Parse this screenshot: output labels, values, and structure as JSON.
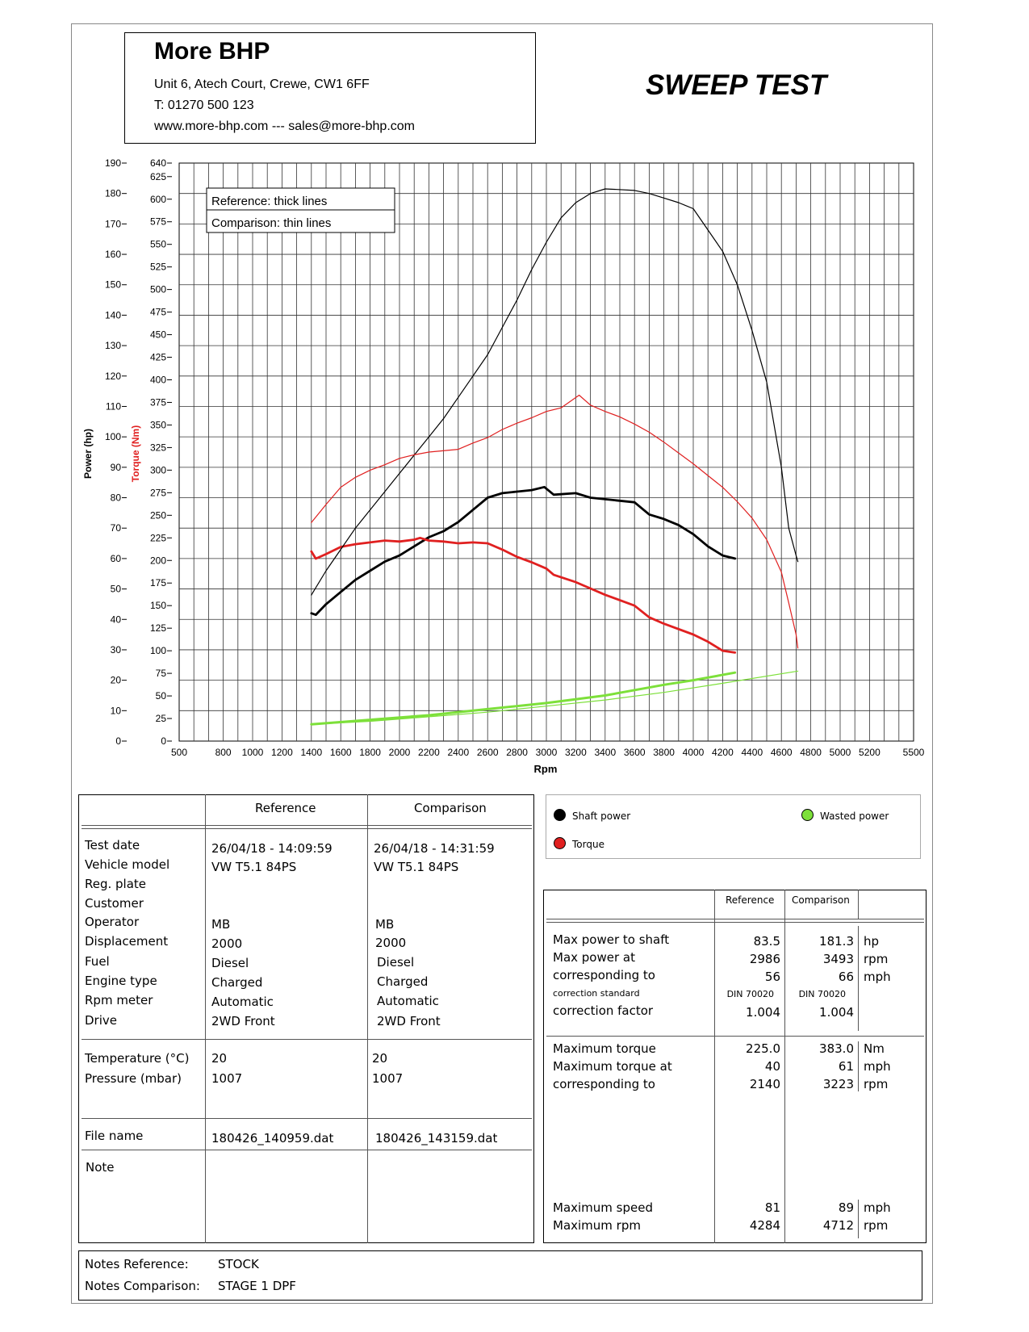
{
  "header": {
    "company": "More BHP",
    "address": "Unit 6, Atech Court, Crewe, CW1 6FF",
    "phone": "T: 01270 500 123",
    "web": "www.more-bhp.com --- sales@more-bhp.com",
    "test_title": "SWEEP TEST"
  },
  "colors": {
    "shaft_power": "#000000",
    "torque": "#e02020",
    "wasted_power": "#7de03a",
    "grid": "#333333"
  },
  "chart_data": {
    "type": "line",
    "x": [
      1400,
      1600,
      1800,
      2000,
      2200,
      2400,
      2600,
      2800,
      3000,
      3200,
      3400,
      3600,
      3800,
      4000,
      4200,
      4284,
      4400,
      4600,
      4700,
      4712
    ],
    "xlabel": "Rpm",
    "xlim": [
      500,
      5500
    ],
    "xticks": [
      "500",
      "800",
      "1000",
      "1200",
      "1400",
      "1600",
      "1800",
      "2000",
      "2200",
      "2400",
      "2600",
      "2800",
      "3000",
      "3200",
      "3400",
      "3600",
      "3800",
      "4000",
      "4200",
      "4400",
      "4600",
      "4800",
      "5000",
      "5200",
      "5500"
    ],
    "xtick_values": [
      500,
      800,
      1000,
      1200,
      1400,
      1600,
      1800,
      2000,
      2200,
      2400,
      2600,
      2800,
      3000,
      3200,
      3400,
      3600,
      3800,
      4000,
      4200,
      4400,
      4600,
      4800,
      5000,
      5200,
      5500
    ],
    "ylabel_left": "Power (hp)",
    "ylim_left": [
      0,
      190
    ],
    "yticks_left": [
      "0",
      "10",
      "20",
      "30",
      "40",
      "50",
      "60",
      "70",
      "80",
      "90",
      "100",
      "110",
      "120",
      "130",
      "140",
      "150",
      "160",
      "170",
      "180",
      "190"
    ],
    "ylabel_right": "Torque (Nm)",
    "ylim_right": [
      0,
      640
    ],
    "yticks_right": [
      "0",
      "25",
      "50",
      "75",
      "100",
      "125",
      "150",
      "175",
      "200",
      "225",
      "250",
      "275",
      "300",
      "325",
      "350",
      "375",
      "400",
      "425",
      "450",
      "475",
      "500",
      "525",
      "550",
      "575",
      "600",
      "625",
      "640"
    ],
    "legend_top": [
      "Reference: thick lines",
      "Comparison: thin lines"
    ],
    "legend_placement": "top-left",
    "grid": true,
    "series": [
      {
        "name": "Shaft power",
        "axis": "left",
        "style": "thick",
        "color": "#000000",
        "points": [
          [
            1400,
            42
          ],
          [
            1430,
            41.5
          ],
          [
            1500,
            45
          ],
          [
            1600,
            49
          ],
          [
            1700,
            53
          ],
          [
            1800,
            56
          ],
          [
            1900,
            59
          ],
          [
            2000,
            61
          ],
          [
            2100,
            64
          ],
          [
            2200,
            67
          ],
          [
            2300,
            69
          ],
          [
            2400,
            72
          ],
          [
            2500,
            76
          ],
          [
            2600,
            80
          ],
          [
            2700,
            81.5
          ],
          [
            2800,
            82
          ],
          [
            2900,
            82.5
          ],
          [
            2986,
            83.5
          ],
          [
            3050,
            81
          ],
          [
            3200,
            81.5
          ],
          [
            3300,
            80
          ],
          [
            3400,
            79.5
          ],
          [
            3500,
            79
          ],
          [
            3600,
            78.5
          ],
          [
            3700,
            74.5
          ],
          [
            3800,
            73
          ],
          [
            3900,
            71
          ],
          [
            4000,
            68
          ],
          [
            4100,
            64
          ],
          [
            4200,
            61
          ],
          [
            4284,
            60
          ]
        ]
      },
      {
        "name": "Torque",
        "axis": "right",
        "style": "thick",
        "color": "#e02020",
        "points": [
          [
            1400,
            210
          ],
          [
            1430,
            202
          ],
          [
            1500,
            207
          ],
          [
            1600,
            215
          ],
          [
            1700,
            218
          ],
          [
            1800,
            220
          ],
          [
            1900,
            222
          ],
          [
            2000,
            221
          ],
          [
            2100,
            223
          ],
          [
            2140,
            225
          ],
          [
            2200,
            222
          ],
          [
            2300,
            221
          ],
          [
            2400,
            219
          ],
          [
            2500,
            220
          ],
          [
            2600,
            219
          ],
          [
            2700,
            212
          ],
          [
            2800,
            204
          ],
          [
            2900,
            198
          ],
          [
            3000,
            191
          ],
          [
            3050,
            184
          ],
          [
            3200,
            176
          ],
          [
            3400,
            162
          ],
          [
            3600,
            150
          ],
          [
            3700,
            137
          ],
          [
            3800,
            130
          ],
          [
            4000,
            118
          ],
          [
            4100,
            110
          ],
          [
            4200,
            100
          ],
          [
            4284,
            98
          ]
        ]
      },
      {
        "name": "Wasted power",
        "axis": "left",
        "style": "thick",
        "color": "#7de03a",
        "points": [
          [
            1400,
            5.5
          ],
          [
            1800,
            7
          ],
          [
            2200,
            8.5
          ],
          [
            2600,
            10.5
          ],
          [
            3000,
            12.5
          ],
          [
            3400,
            15
          ],
          [
            3800,
            18.5
          ],
          [
            4000,
            20
          ],
          [
            4284,
            22.5
          ]
        ]
      },
      {
        "name": "Shaft power",
        "axis": "left",
        "style": "thin",
        "color": "#000000",
        "points": [
          [
            1400,
            48
          ],
          [
            1500,
            56
          ],
          [
            1600,
            63
          ],
          [
            1700,
            70
          ],
          [
            1800,
            76
          ],
          [
            1900,
            82
          ],
          [
            2000,
            88
          ],
          [
            2100,
            94
          ],
          [
            2200,
            100
          ],
          [
            2300,
            106
          ],
          [
            2400,
            113
          ],
          [
            2500,
            120
          ],
          [
            2600,
            127
          ],
          [
            2700,
            136
          ],
          [
            2800,
            145
          ],
          [
            2900,
            155
          ],
          [
            3000,
            164
          ],
          [
            3100,
            172
          ],
          [
            3200,
            177
          ],
          [
            3300,
            180
          ],
          [
            3400,
            181.5
          ],
          [
            3493,
            181.3
          ],
          [
            3600,
            181
          ],
          [
            3700,
            180
          ],
          [
            3800,
            178.5
          ],
          [
            3900,
            177
          ],
          [
            4000,
            175
          ],
          [
            4100,
            168
          ],
          [
            4200,
            161
          ],
          [
            4300,
            150
          ],
          [
            4400,
            135
          ],
          [
            4500,
            118
          ],
          [
            4600,
            90
          ],
          [
            4650,
            70
          ],
          [
            4700,
            61
          ],
          [
            4712,
            59
          ]
        ]
      },
      {
        "name": "Torque",
        "axis": "right",
        "style": "thin",
        "color": "#e02020",
        "points": [
          [
            1400,
            242
          ],
          [
            1500,
            262
          ],
          [
            1600,
            281
          ],
          [
            1700,
            292
          ],
          [
            1800,
            300
          ],
          [
            1900,
            306
          ],
          [
            2000,
            313
          ],
          [
            2100,
            317
          ],
          [
            2200,
            320
          ],
          [
            2400,
            323
          ],
          [
            2500,
            330
          ],
          [
            2600,
            336
          ],
          [
            2700,
            345
          ],
          [
            2800,
            352
          ],
          [
            2900,
            358
          ],
          [
            3000,
            365
          ],
          [
            3100,
            369
          ],
          [
            3223,
            383
          ],
          [
            3300,
            372
          ],
          [
            3400,
            365
          ],
          [
            3500,
            359
          ],
          [
            3600,
            351
          ],
          [
            3700,
            342
          ],
          [
            3800,
            331
          ],
          [
            3900,
            319
          ],
          [
            4000,
            307
          ],
          [
            4100,
            294
          ],
          [
            4200,
            281
          ],
          [
            4300,
            265
          ],
          [
            4400,
            247
          ],
          [
            4500,
            223
          ],
          [
            4600,
            187
          ],
          [
            4650,
            153
          ],
          [
            4700,
            118
          ],
          [
            4712,
            103
          ]
        ]
      },
      {
        "name": "Wasted power",
        "axis": "left",
        "style": "thin",
        "color": "#7de03a",
        "points": [
          [
            1400,
            5.5
          ],
          [
            1800,
            6.5
          ],
          [
            2200,
            8
          ],
          [
            2600,
            9.5
          ],
          [
            3000,
            11.5
          ],
          [
            3400,
            13.5
          ],
          [
            3800,
            16
          ],
          [
            4200,
            19
          ],
          [
            4712,
            23
          ]
        ]
      }
    ]
  },
  "legend": {
    "shaft_power": "Shaft power",
    "torque": "Torque",
    "wasted_power": "Wasted power"
  },
  "vehicle_table": {
    "head_reference": "Reference",
    "head_comparison": "Comparison",
    "labels": [
      "Test date",
      "Vehicle model",
      "Reg. plate",
      "Customer",
      "Operator",
      "Displacement",
      "Fuel",
      "Engine type",
      "Rpm meter",
      "Drive"
    ],
    "reference": {
      "test_date": "26/04/18 - 14:09:59",
      "vehicle_model": "VW T5.1 84PS",
      "operator": "MB",
      "displacement": "2000",
      "fuel": "Diesel",
      "engine_type": "Charged",
      "rpm_meter": "Automatic",
      "drive": "2WD Front",
      "temperature": "20",
      "pressure": "1007",
      "file_name": "180426_140959.dat"
    },
    "comparison": {
      "test_date": "26/04/18 - 14:31:59",
      "vehicle_model": "VW T5.1 84PS",
      "operator": "MB",
      "displacement": "2000",
      "fuel": "Diesel",
      "engine_type": "Charged",
      "rpm_meter": "Automatic",
      "drive": "2WD Front",
      "temperature": "20",
      "pressure": "1007",
      "file_name": "180426_143159.dat"
    },
    "temperature_label": "Temperature (°C)",
    "pressure_label": "Pressure (mbar)",
    "file_name_label": "File name",
    "note_label": "Note"
  },
  "results_table": {
    "head_reference": "Reference",
    "head_comparison": "Comparison",
    "rows1": [
      {
        "label": "Max power to shaft",
        "ref": "83.5",
        "cmp": "181.3",
        "unit": "hp"
      },
      {
        "label": "Max power at",
        "ref": "2986",
        "cmp": "3493",
        "unit": "rpm"
      },
      {
        "label": "corresponding to",
        "ref": "56",
        "cmp": "66",
        "unit": "mph"
      }
    ],
    "correction_standard_label": "correction standard",
    "correction_standard_ref": "DIN 70020",
    "correction_standard_cmp": "DIN 70020",
    "correction_factor_label": "correction factor",
    "correction_factor_ref": "1.004",
    "correction_factor_cmp": "1.004",
    "rows2": [
      {
        "label": "Maximum torque",
        "ref": "225.0",
        "cmp": "383.0",
        "unit": "Nm"
      },
      {
        "label": "Maximum torque at",
        "ref": "40",
        "cmp": "61",
        "unit": "mph"
      },
      {
        "label": "corresponding to",
        "ref": "2140",
        "cmp": "3223",
        "unit": "rpm"
      }
    ],
    "rows3": [
      {
        "label": "Maximum speed",
        "ref": "81",
        "cmp": "89",
        "unit": "mph"
      },
      {
        "label": "Maximum rpm",
        "ref": "4284",
        "cmp": "4712",
        "unit": "rpm"
      }
    ]
  },
  "notes": {
    "reference_label": "Notes Reference:",
    "reference_value": "STOCK",
    "comparison_label": "Notes Comparison:",
    "comparison_value": "STAGE 1 DPF"
  }
}
